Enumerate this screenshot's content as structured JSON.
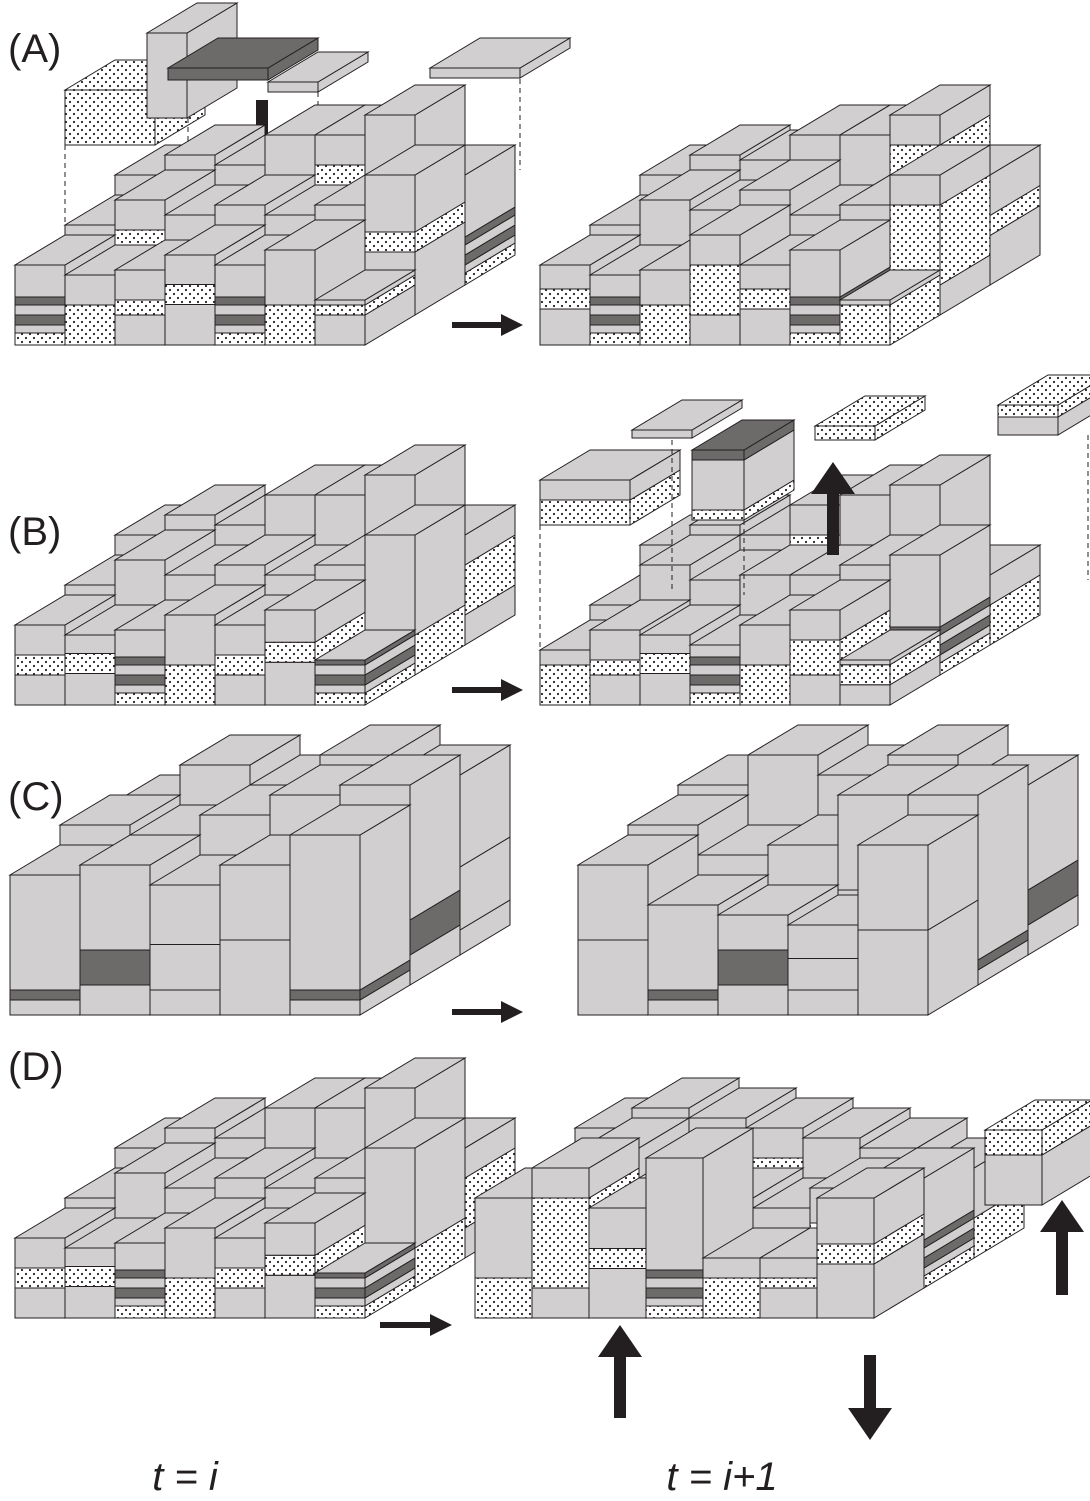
{
  "panels": [
    {
      "label": "(A)"
    },
    {
      "label": "(B)"
    },
    {
      "label": "(C)"
    },
    {
      "label": "(D)"
    }
  ],
  "time_labels": [
    "t = i",
    "t = i+1"
  ]
}
